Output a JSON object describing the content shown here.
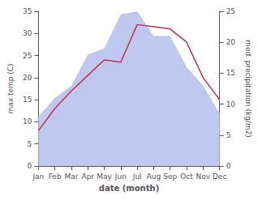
{
  "chart_data": {
    "type": "line",
    "xlabel": "date (month)",
    "ylabel": "max temp (C)",
    "y2label": "med. precipitation (kg/m2)",
    "categories": [
      "Jan",
      "Feb",
      "Mar",
      "Apr",
      "May",
      "Jun",
      "Jul",
      "Aug",
      "Sep",
      "Oct",
      "Nov",
      "Dec"
    ],
    "series": [
      {
        "type": "area",
        "axis": "y2",
        "color": "#c0c8f0",
        "values": [
          8.0,
          11.0,
          13.0,
          18.0,
          19.0,
          24.5,
          25.0,
          21.0,
          21.0,
          16.0,
          13.0,
          8.5
        ]
      },
      {
        "type": "line",
        "color": "#c03050",
        "values": [
          8.0,
          13.0,
          17.0,
          20.5,
          24.0,
          23.5,
          32.0,
          31.5,
          31.0,
          28.0,
          20.0,
          15.0
        ]
      }
    ],
    "ylim": [
      0,
      35
    ],
    "yticks": [
      0,
      5,
      10,
      15,
      20,
      25,
      30,
      35
    ],
    "y2lim": [
      0,
      25
    ],
    "y2ticks": [
      0,
      5,
      10,
      15,
      20,
      25
    ],
    "grid": false
  }
}
